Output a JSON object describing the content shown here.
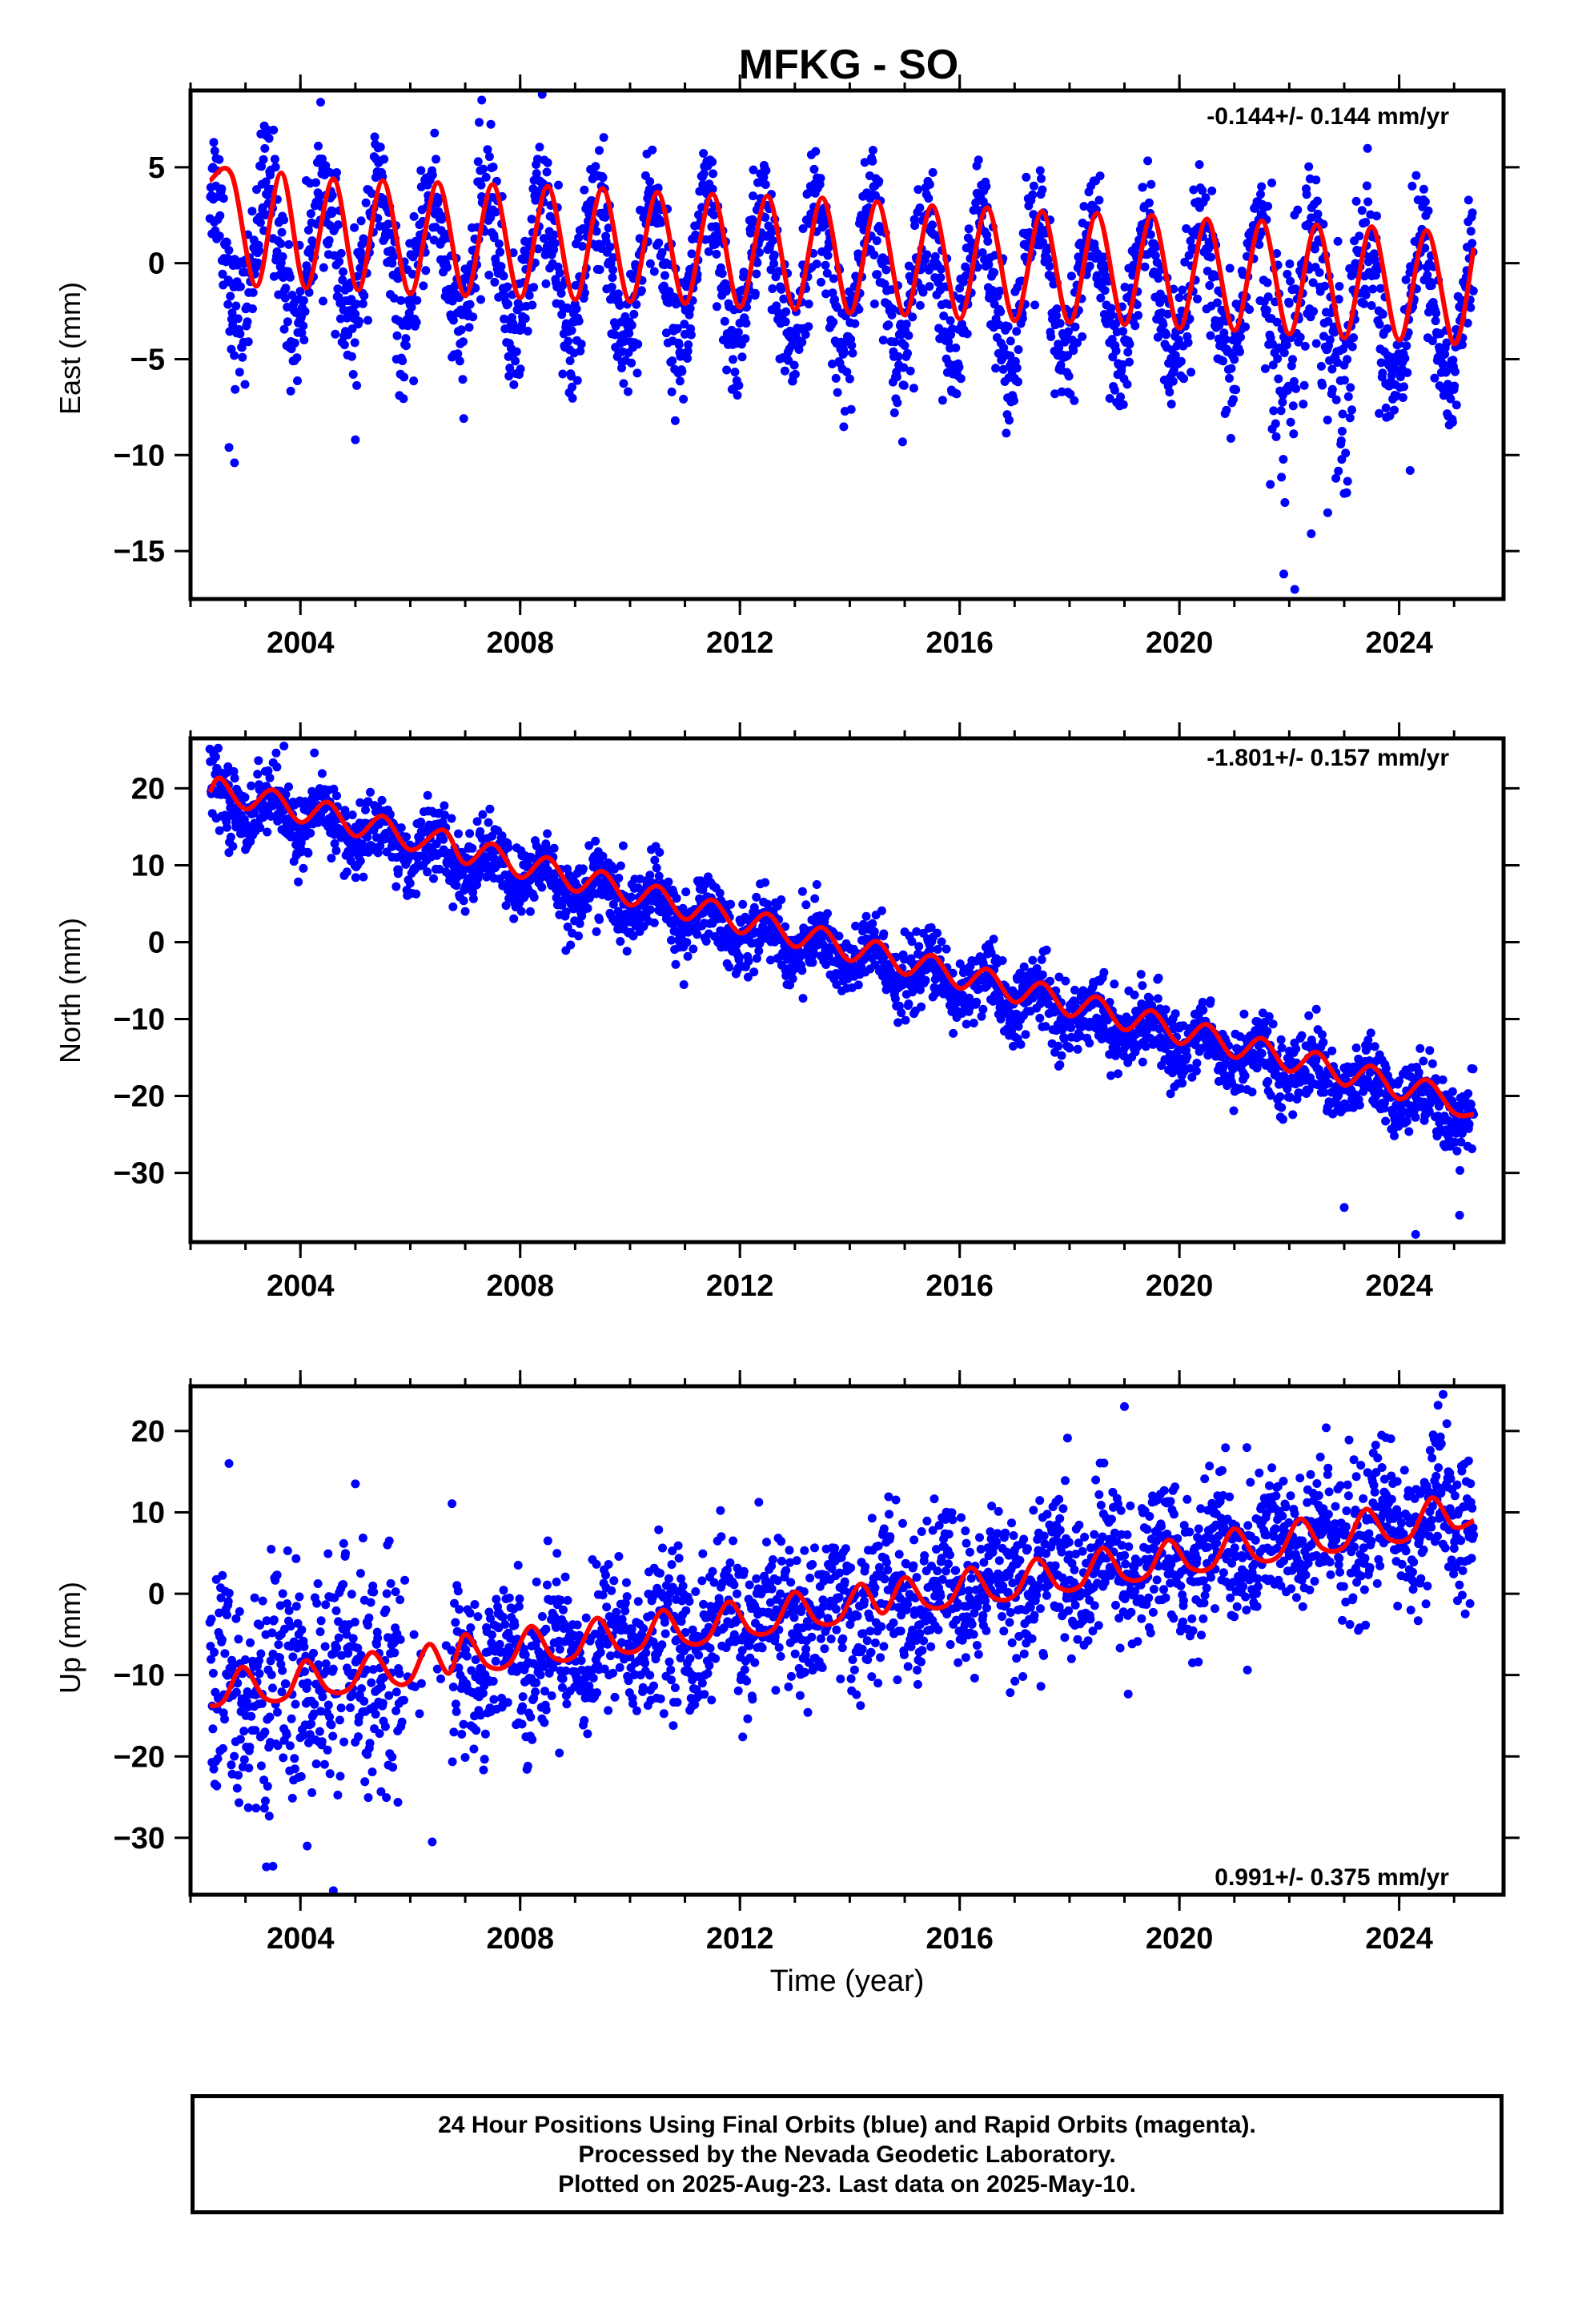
{
  "title": "MFKG - SO",
  "colors": {
    "observations": "#0000ff",
    "model": "#ff0000",
    "axes": "#000000",
    "background": "#ffffff"
  },
  "chart_data": [
    {
      "type": "scatter",
      "id": "east",
      "ylabel": "East (mm)",
      "xlabel": "",
      "xlim": [
        2002.0,
        2025.9
      ],
      "ylim": [
        -17.5,
        9.0
      ],
      "xticks": [
        2004,
        2008,
        2012,
        2016,
        2020,
        2024
      ],
      "xtick_labels": [
        "2004",
        "2008",
        "2012",
        "2016",
        "2020",
        "2024"
      ],
      "yticks": [
        -15,
        -10,
        -5,
        0,
        5
      ],
      "ytick_labels": [
        "−15",
        "−10",
        "−5",
        "0",
        "5"
      ],
      "rate_label": "-0.144+/- 0.144 mm/yr",
      "rate_position": "top-right",
      "data_start": 2002.35,
      "data_end": 2025.36,
      "series": [
        {
          "kind": "points",
          "color": "#0000ff",
          "trend": {
            "intercept_2002": 0.7,
            "rate": -0.144
          },
          "annual_amplitude": 3.6,
          "annual_phase": 0.4,
          "scatter_sd": 1.7,
          "outliers": [
            [
              2002.8,
              -10.4
            ],
            [
              2002.7,
              -9.6
            ],
            [
              2005.0,
              -9.2
            ],
            [
              2021.9,
              -16.2
            ],
            [
              2022.1,
              -17.0
            ],
            [
              2022.4,
              -14.1
            ],
            [
              2022.7,
              -13.0
            ],
            [
              2023.0,
              -12.0
            ],
            [
              2024.2,
              -10.8
            ],
            [
              2007.3,
              8.5
            ],
            [
              2008.4,
              8.8
            ]
          ]
        },
        {
          "kind": "model-line",
          "color": "#ff0000",
          "x": [
            2002.35,
            2002.75,
            2003.2,
            2003.65,
            2004.1,
            2004.6,
            2005.05,
            2005.5,
            2006.0,
            2006.5,
            2007.0,
            2007.5,
            2008.0,
            2008.5,
            2009.0,
            2009.5,
            2010.0,
            2010.5,
            2011.0,
            2011.5,
            2012.0,
            2012.5,
            2013.0,
            2013.5,
            2014.0,
            2014.5,
            2015.0,
            2015.5,
            2016.0,
            2016.5,
            2017.0,
            2017.5,
            2018.0,
            2018.5,
            2019.0,
            2019.5,
            2020.0,
            2020.5,
            2021.0,
            2021.5,
            2022.0,
            2022.5,
            2023.0,
            2023.5,
            2024.0,
            2024.5,
            2025.0,
            2025.36
          ],
          "y": [
            4.3,
            4.6,
            -1.2,
            4.7,
            -1.3,
            4.4,
            -1.4,
            4.3,
            -1.6,
            4.2,
            -1.7,
            4.1,
            -1.8,
            4.0,
            -1.9,
            3.9,
            -2.0,
            3.7,
            -2.1,
            3.6,
            -2.3,
            3.5,
            -2.4,
            3.4,
            -2.6,
            3.2,
            -2.7,
            3.0,
            -2.9,
            2.9,
            -3.0,
            2.7,
            -3.1,
            2.6,
            -3.2,
            2.5,
            -3.4,
            2.3,
            -3.5,
            2.2,
            -3.7,
            2.0,
            -3.9,
            1.9,
            -4.0,
            1.7,
            -4.2,
            0.8
          ]
        }
      ]
    },
    {
      "type": "scatter",
      "id": "north",
      "ylabel": "North (mm)",
      "xlabel": "",
      "xlim": [
        2002.0,
        2025.9
      ],
      "ylim": [
        -39.0,
        26.5
      ],
      "xticks": [
        2004,
        2008,
        2012,
        2016,
        2020,
        2024
      ],
      "xtick_labels": [
        "2004",
        "2008",
        "2012",
        "2016",
        "2020",
        "2024"
      ],
      "yticks": [
        -30,
        -20,
        -10,
        0,
        10,
        20
      ],
      "ytick_labels": [
        "−30",
        "−20",
        "−10",
        "0",
        "10",
        "20"
      ],
      "rate_label": "-1.801+/- 0.157 mm/yr",
      "rate_position": "top-right",
      "data_start": 2002.35,
      "data_end": 2025.36,
      "series": [
        {
          "kind": "points",
          "color": "#0000ff",
          "trend": {
            "intercept_2002": 19.8,
            "rate": -1.801
          },
          "annual_amplitude": 2.0,
          "annual_phase": 0.45,
          "scatter_sd": 2.3,
          "outliers": [
            [
              2003.7,
              25.5
            ],
            [
              2007.0,
              4.0
            ],
            [
              2023.0,
              -34.5
            ],
            [
              2024.3,
              -38.0
            ],
            [
              2025.1,
              -35.5
            ],
            [
              2013.4,
              7.5
            ]
          ]
        },
        {
          "kind": "model-line",
          "color": "#ff0000",
          "x": [
            2002.35,
            2002.55,
            2003.0,
            2003.5,
            2004.0,
            2004.5,
            2005.0,
            2005.5,
            2006.0,
            2006.6,
            2007.0,
            2007.5,
            2008.0,
            2008.5,
            2009.0,
            2009.5,
            2010.0,
            2010.5,
            2011.0,
            2011.5,
            2012.0,
            2012.5,
            2013.0,
            2013.5,
            2014.0,
            2014.5,
            2015.0,
            2015.5,
            2016.0,
            2016.5,
            2017.0,
            2017.5,
            2018.0,
            2018.5,
            2019.0,
            2019.5,
            2020.0,
            2020.5,
            2021.0,
            2021.5,
            2022.0,
            2022.5,
            2023.0,
            2023.5,
            2024.0,
            2024.5,
            2025.0,
            2025.36
          ],
          "y": [
            19.5,
            21.3,
            17.3,
            19.8,
            15.6,
            18.2,
            13.8,
            16.4,
            12.0,
            14.6,
            10.2,
            12.8,
            8.4,
            11.0,
            6.6,
            9.2,
            4.8,
            7.3,
            3.0,
            5.5,
            1.2,
            3.7,
            -0.6,
            1.9,
            -2.4,
            0.1,
            -4.2,
            -1.7,
            -6.0,
            -3.5,
            -7.8,
            -5.3,
            -9.6,
            -7.1,
            -11.4,
            -8.9,
            -13.2,
            -10.7,
            -15.0,
            -12.5,
            -16.8,
            -14.3,
            -18.6,
            -16.1,
            -20.4,
            -17.9,
            -22.2,
            -22.4
          ]
        }
      ]
    },
    {
      "type": "scatter",
      "id": "up",
      "ylabel": "Up (mm)",
      "xlabel": "Time (year)",
      "xlim": [
        2002.0,
        2025.9
      ],
      "ylim": [
        -37.0,
        25.5
      ],
      "xticks": [
        2004,
        2008,
        2012,
        2016,
        2020,
        2024
      ],
      "xtick_labels": [
        "2004",
        "2008",
        "2012",
        "2016",
        "2020",
        "2024"
      ],
      "yticks": [
        -30,
        -20,
        -10,
        0,
        10,
        20
      ],
      "ytick_labels": [
        "−30",
        "−20",
        "−10",
        "0",
        "10",
        "20"
      ],
      "rate_label": "0.991+/- 0.375 mm/yr",
      "rate_position": "bottom-right",
      "data_start": 2002.35,
      "data_end": 2025.36,
      "series": [
        {
          "kind": "points",
          "color": "#0000ff",
          "trend": {
            "intercept_2002": -13.5,
            "rate": 0.991
          },
          "annual_amplitude": 2.5,
          "annual_phase": 0.7,
          "scatter_sd": 4.5,
          "outliers": [
            [
              2004.6,
              -36.5
            ],
            [
              2003.5,
              -33.5
            ],
            [
              2006.4,
              -30.5
            ],
            [
              2019.0,
              23.0
            ],
            [
              2024.8,
              24.5
            ],
            [
              2002.7,
              16.0
            ],
            [
              2005.0,
              13.5
            ]
          ]
        },
        {
          "kind": "model-line",
          "color": "#ff0000",
          "x": [
            2002.35,
            2002.6,
            2002.95,
            2003.35,
            2003.75,
            2004.1,
            2004.5,
            2004.9,
            2005.3,
            2005.7,
            2006.0,
            2006.35,
            2006.7,
            2007.0,
            2007.4,
            2007.8,
            2008.2,
            2008.6,
            2009.0,
            2009.4,
            2009.8,
            2010.2,
            2010.6,
            2011.0,
            2011.4,
            2011.8,
            2012.2,
            2012.6,
            2013.0,
            2013.4,
            2013.8,
            2014.2,
            2014.6,
            2015.0,
            2015.4,
            2015.8,
            2016.2,
            2016.6,
            2017.0,
            2017.4,
            2017.8,
            2018.2,
            2018.6,
            2019.0,
            2019.4,
            2019.8,
            2020.2,
            2020.6,
            2021.0,
            2021.4,
            2021.8,
            2022.2,
            2022.6,
            2023.0,
            2023.4,
            2023.8,
            2024.2,
            2024.6,
            2025.0,
            2025.36
          ],
          "y": [
            -13.8,
            -13.2,
            -9.0,
            -12.8,
            -12.6,
            -8.2,
            -11.8,
            -11.6,
            -7.2,
            -10.8,
            -10.6,
            -6.2,
            -9.8,
            -5.0,
            -8.8,
            -8.6,
            -4.0,
            -7.8,
            -7.6,
            -3.0,
            -6.8,
            -6.6,
            -2.0,
            -5.8,
            -5.6,
            -1.0,
            -4.6,
            -4.4,
            0.2,
            -3.4,
            -3.2,
            1.2,
            -2.4,
            2.0,
            -1.4,
            -1.2,
            3.2,
            -0.4,
            -0.2,
            4.3,
            0.8,
            1.0,
            5.6,
            2.0,
            2.2,
            6.6,
            3.2,
            3.4,
            8.0,
            4.4,
            4.6,
            9.2,
            5.6,
            5.8,
            10.4,
            6.8,
            7.0,
            11.8,
            8.2,
            9.0
          ]
        }
      ]
    }
  ],
  "footer": {
    "line1": "24 Hour Positions Using Final Orbits (blue) and Rapid Orbits (magenta).",
    "line2": "Processed by the Nevada Geodetic Laboratory.",
    "line3": "Plotted on 2025-Aug-23. Last data on 2025-May-10."
  }
}
